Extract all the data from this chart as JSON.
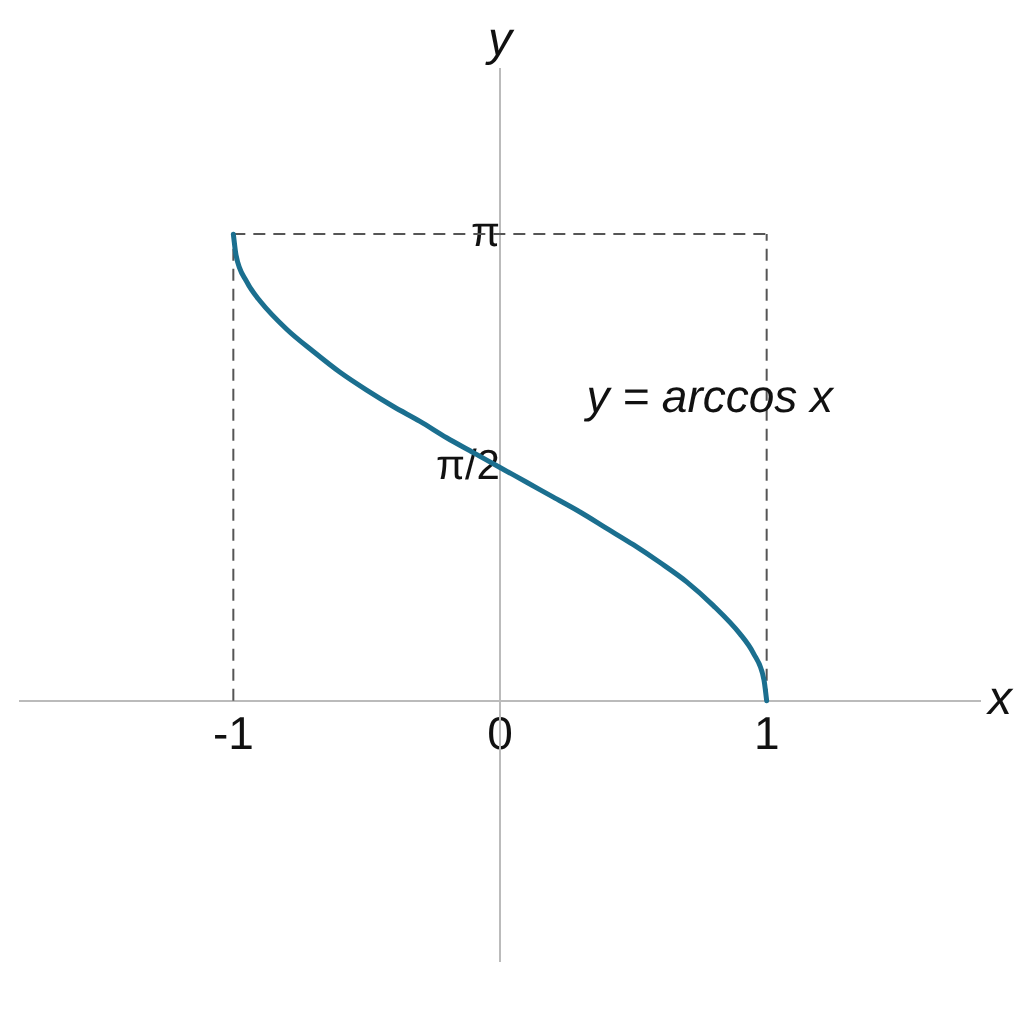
{
  "chart_data": {
    "type": "line",
    "xlabel": "x",
    "ylabel": "y",
    "xlim": [
      -1.8,
      1.8
    ],
    "ylim": [
      -1.75,
      4.25
    ],
    "xticks": [
      -1,
      0,
      1
    ],
    "yticks": [
      {
        "value": 1.5708,
        "label": "π/2"
      },
      {
        "value": 3.1416,
        "label": "π"
      }
    ],
    "x": [
      -1,
      -0.99,
      -0.95,
      -0.9,
      -0.8,
      -0.7,
      -0.6,
      -0.5,
      -0.4,
      -0.3,
      -0.2,
      -0.1,
      0,
      0.1,
      0.2,
      0.3,
      0.4,
      0.5,
      0.6,
      0.7,
      0.8,
      0.9,
      0.95,
      0.99,
      1
    ],
    "series": [
      {
        "color": "#1b6f8f",
        "values": [
          3.14,
          3.0,
          2.82,
          2.69,
          2.5,
          2.35,
          2.21,
          2.09,
          1.98,
          1.88,
          1.77,
          1.67,
          1.57,
          1.47,
          1.37,
          1.27,
          1.16,
          1.05,
          0.93,
          0.8,
          0.64,
          0.45,
          0.32,
          0.14,
          0
        ]
      }
    ],
    "ref_lines": [
      {
        "axis": "x",
        "value": -1,
        "line_style": "dashed",
        "color": "#555555"
      },
      {
        "axis": "x",
        "value": 1,
        "line_style": "dashed",
        "color": "#555555"
      },
      {
        "axis": "y",
        "value": 3.1416,
        "line_style": "dashed",
        "color": "#555555"
      }
    ],
    "annotations": [
      "y = arccos x"
    ],
    "grid": false,
    "legend": false,
    "marker": "none",
    "line_style": "solid"
  }
}
